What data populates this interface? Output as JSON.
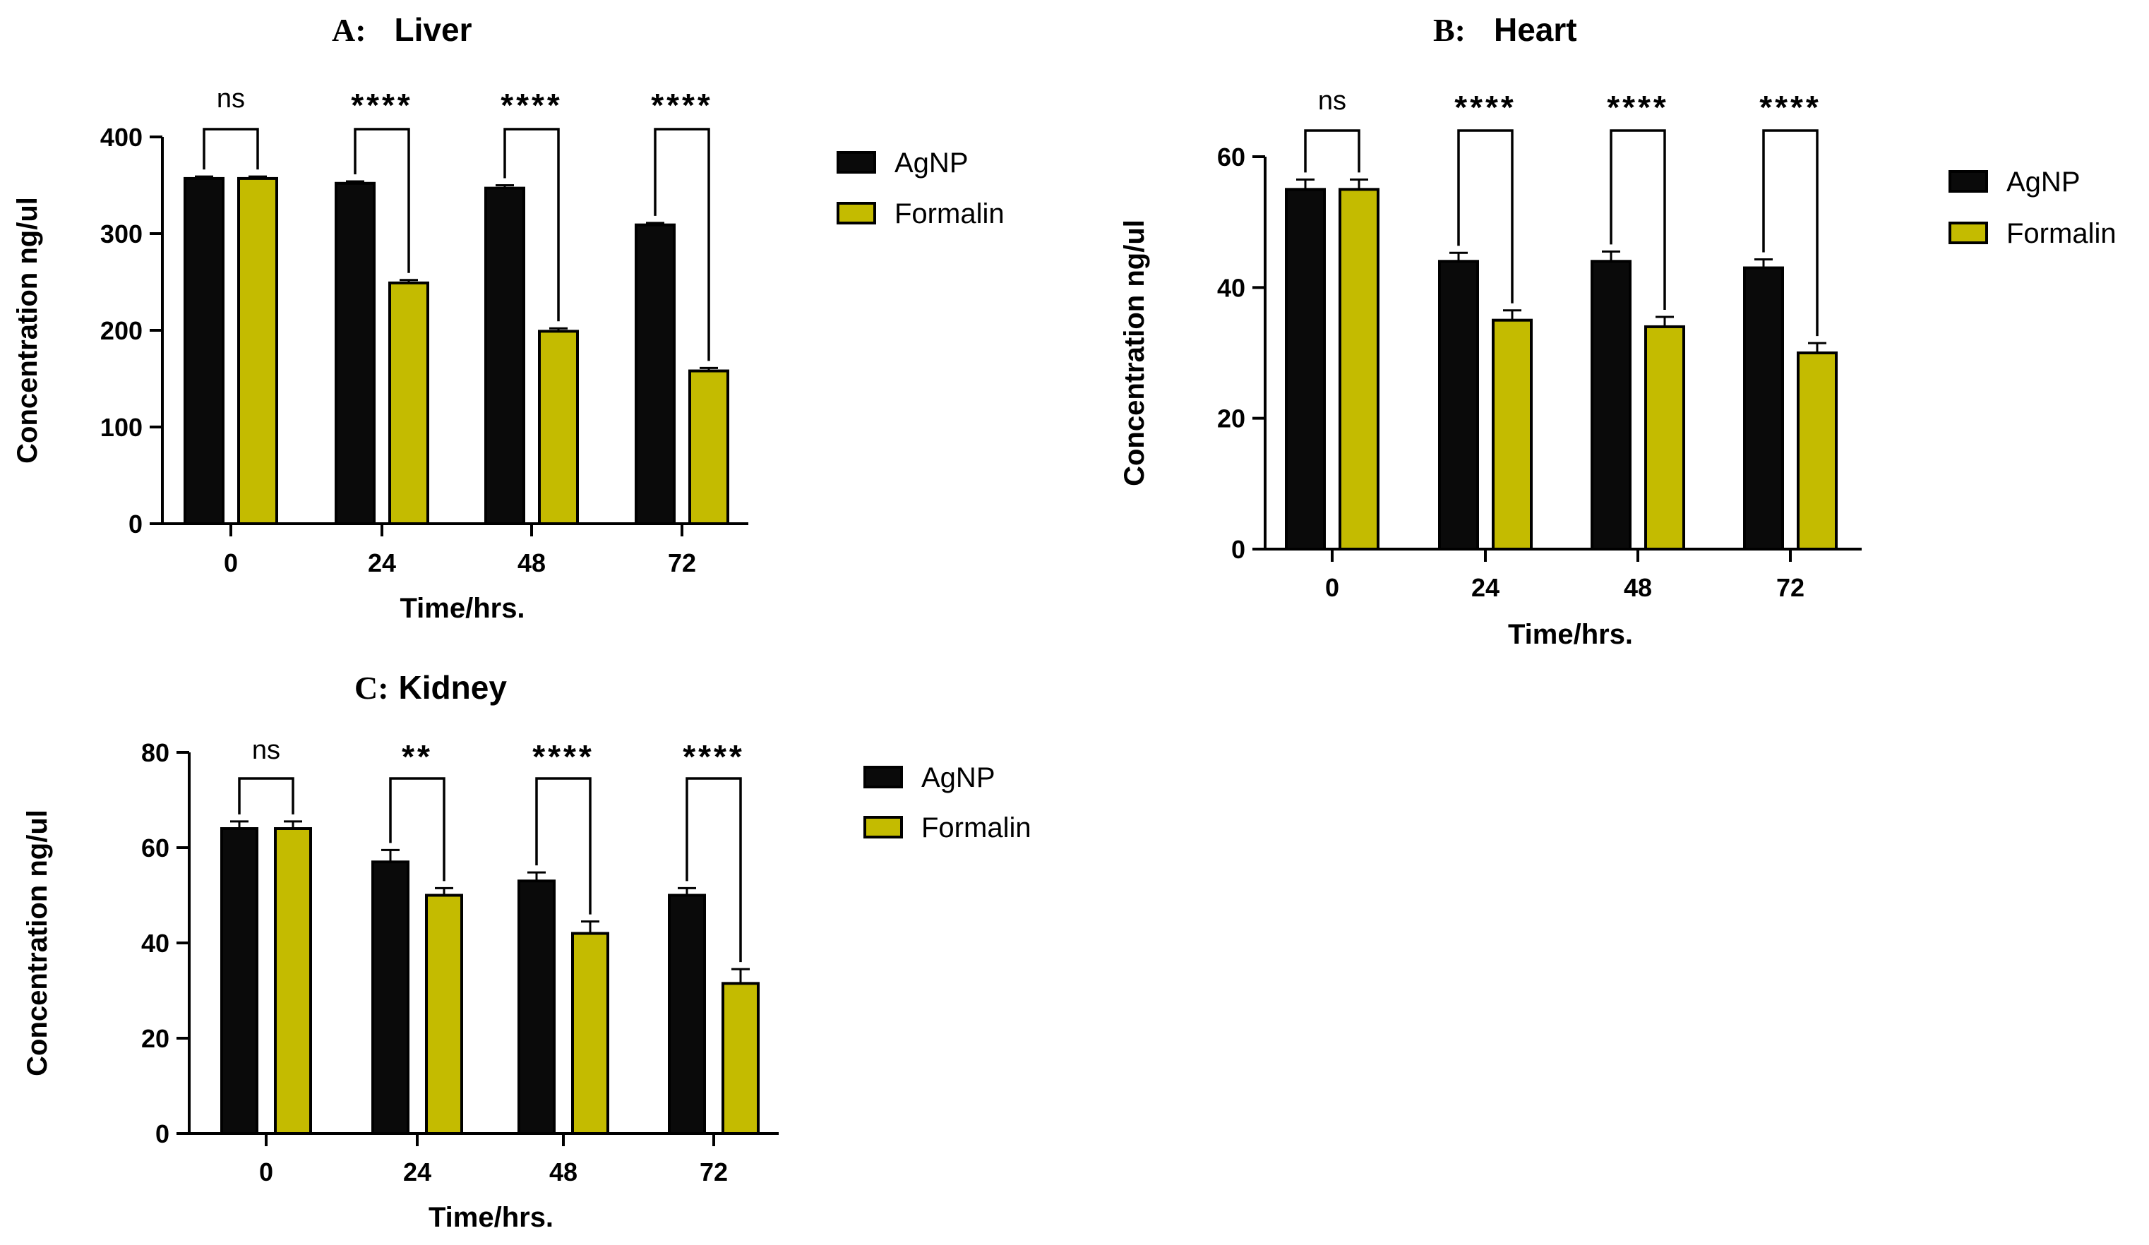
{
  "chart_data": [
    {
      "type": "bar",
      "panel_label": "A:",
      "title": "Liver",
      "xlabel": "Time/hrs.",
      "ylabel": "Concentration ng/ul",
      "categories": [
        "0",
        "24",
        "48",
        "72"
      ],
      "ylim": [
        0,
        400
      ],
      "yticks": [
        0,
        100,
        200,
        300,
        400
      ],
      "series": [
        {
          "name": "AgNP",
          "values": [
            357,
            352,
            347,
            309
          ],
          "errors": [
            2,
            2,
            3,
            2
          ]
        },
        {
          "name": "Formalin",
          "values": [
            357,
            249,
            199,
            158
          ],
          "errors": [
            2,
            3,
            3,
            3
          ]
        }
      ],
      "significance": [
        "ns",
        "****",
        "****",
        "****"
      ],
      "legend": [
        "AgNP",
        "Formalin"
      ],
      "legend_position": "right"
    },
    {
      "type": "bar",
      "panel_label": "B:",
      "title": "Heart",
      "xlabel": "Time/hrs.",
      "ylabel": "Concentration ng/ul",
      "categories": [
        "0",
        "24",
        "48",
        "72"
      ],
      "ylim": [
        0,
        60
      ],
      "yticks": [
        0,
        20,
        40,
        60
      ],
      "series": [
        {
          "name": "AgNP",
          "values": [
            55,
            44,
            44,
            43
          ],
          "errors": [
            1.5,
            1.3,
            1.5,
            1.3
          ]
        },
        {
          "name": "Formalin",
          "values": [
            55,
            35,
            34,
            30
          ],
          "errors": [
            1.5,
            1.5,
            1.5,
            1.5
          ]
        }
      ],
      "significance": [
        "ns",
        "****",
        "****",
        "****"
      ],
      "legend": [
        "AgNP",
        "Formalin"
      ],
      "legend_position": "right"
    },
    {
      "type": "bar",
      "panel_label": "C:",
      "title": "Kidney",
      "xlabel": "Time/hrs.",
      "ylabel": "Concentration ng/ul",
      "categories": [
        "0",
        "24",
        "48",
        "72"
      ],
      "ylim": [
        0,
        80
      ],
      "yticks": [
        0,
        20,
        40,
        60,
        80
      ],
      "series": [
        {
          "name": "AgNP",
          "values": [
            64,
            57,
            53,
            50
          ],
          "errors": [
            1.5,
            2.5,
            1.8,
            1.5
          ]
        },
        {
          "name": "Formalin",
          "values": [
            64,
            50,
            42,
            31.5
          ],
          "errors": [
            1.5,
            1.5,
            2.5,
            3
          ]
        }
      ],
      "significance": [
        "ns",
        "**",
        "****",
        "****"
      ],
      "legend": [
        "AgNP",
        "Formalin"
      ],
      "legend_position": "right"
    }
  ],
  "colors": {
    "agnp": "#0a0a0a",
    "formalin": "#c4bb00",
    "axis": "#000000"
  }
}
